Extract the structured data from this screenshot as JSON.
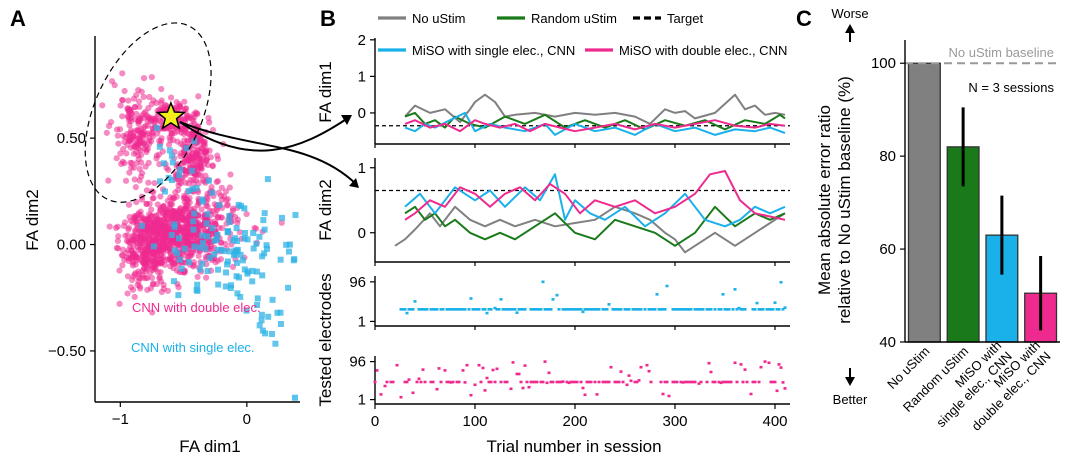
{
  "chart_data": [
    {
      "panel": "A",
      "type": "scatter",
      "xlabel": "FA dim1",
      "ylabel": "FA dim2",
      "xlim": [
        -1.2,
        0.42
      ],
      "ylim": [
        -0.74,
        0.98
      ],
      "xticks": [
        -1,
        0
      ],
      "xtick_labels": [
        "−1",
        "0"
      ],
      "yticks": [
        0.5,
        0.0,
        -0.5
      ],
      "ytick_labels": [
        "0.50",
        "0.00",
        "−0.50"
      ],
      "target": {
        "x": -0.6,
        "y": 0.6
      },
      "target_region": {
        "cx": -0.78,
        "cy": 0.62,
        "rx": 0.42,
        "ry": 0.45
      },
      "series": [
        {
          "name": "CNN with double elec.",
          "color": "#ee2a8f",
          "marker": "circle",
          "n": 1500,
          "clusters": [
            {
              "x": -0.6,
              "y": 0.58,
              "sx": 0.12,
              "sy": 0.05,
              "w": 0.12
            },
            {
              "x": -0.42,
              "y": 0.42,
              "sx": 0.08,
              "sy": 0.08,
              "w": 0.12
            },
            {
              "x": -0.4,
              "y": 0.08,
              "sx": 0.18,
              "sy": 0.1,
              "w": 0.28
            },
            {
              "x": -0.88,
              "y": 0.52,
              "sx": 0.09,
              "sy": 0.12,
              "w": 0.1
            },
            {
              "x": -0.8,
              "y": -0.02,
              "sx": 0.1,
              "sy": 0.1,
              "w": 0.18
            },
            {
              "x": -0.62,
              "y": 0.04,
              "sx": 0.12,
              "sy": 0.07,
              "w": 0.2
            }
          ]
        },
        {
          "name": "CNN with single elec.",
          "color": "#2db3e6",
          "marker": "square",
          "n": 140,
          "clusters": [
            {
              "x": -0.2,
              "y": 0.0,
              "sx": 0.24,
              "sy": 0.12,
              "w": 0.7
            },
            {
              "x": -0.55,
              "y": 0.4,
              "sx": 0.08,
              "sy": 0.08,
              "w": 0.15
            },
            {
              "x": 0.15,
              "y": -0.25,
              "sx": 0.1,
              "sy": 0.15,
              "w": 0.15
            }
          ],
          "outliers": [
            [
              0.38,
              -0.72
            ],
            [
              0.34,
              0.0
            ],
            [
              -0.02,
              0.17
            ],
            [
              -0.3,
              0.3
            ]
          ]
        }
      ],
      "annotations": [
        "CNN with double elec.",
        "CNN with single elec."
      ]
    },
    {
      "panel": "B",
      "type": "line",
      "xlabel": "Trial number in session",
      "xlim": [
        0,
        415
      ],
      "xticks": [
        0,
        100,
        200,
        300,
        400
      ],
      "legend": [
        {
          "name": "No uStim",
          "color": "#808080",
          "dash": false
        },
        {
          "name": "Random uStim",
          "color": "#1a7a1a",
          "dash": false
        },
        {
          "name": "Target",
          "color": "#000000",
          "dash": true
        },
        {
          "name": "MiSO with single elec., CNN",
          "color": "#1ab0ea",
          "dash": false
        },
        {
          "name": "MiSO with double elec., CNN",
          "color": "#ee2a8f",
          "dash": false
        }
      ],
      "subplots": [
        {
          "ylabel": "FA dim1",
          "ylim": [
            -0.85,
            2.05
          ],
          "yticks": [
            0,
            1,
            2
          ],
          "target": -0.35,
          "series": [
            {
              "name": "No uStim",
              "x": [
                30,
                40,
                55,
                70,
                85,
                95,
                100,
                110,
                120,
                130,
                140,
                160,
                180,
                200,
                220,
                240,
                260,
                275,
                290,
                300,
                310,
                320,
                340,
                360,
                370,
                380,
                390,
                400,
                410
              ],
              "y": [
                -0.1,
                0.2,
                0.0,
                0.1,
                -0.25,
                0.1,
                0.3,
                0.5,
                0.3,
                -0.1,
                -0.05,
                0.0,
                -0.1,
                0.0,
                -0.05,
                0.0,
                -0.1,
                -0.3,
                0.1,
                0.0,
                0.05,
                -0.15,
                0.0,
                0.5,
                0.1,
                0.2,
                -0.05,
                0.0,
                -0.05
              ]
            },
            {
              "name": "Random uStim",
              "x": [
                30,
                40,
                50,
                60,
                70,
                80,
                95,
                110,
                130,
                150,
                170,
                190,
                210,
                230,
                250,
                270,
                290,
                310,
                330,
                350,
                370,
                390,
                405,
                410
              ],
              "y": [
                -0.1,
                0.0,
                -0.3,
                -0.2,
                -0.4,
                -0.1,
                -0.3,
                -0.4,
                -0.1,
                -0.3,
                -0.05,
                -0.4,
                -0.2,
                -0.4,
                -0.2,
                -0.45,
                -0.2,
                -0.35,
                -0.2,
                -0.45,
                -0.2,
                -0.3,
                -0.05,
                -0.15
              ]
            },
            {
              "name": "MiSO with single elec., CNN",
              "x": [
                30,
                40,
                50,
                60,
                75,
                90,
                100,
                115,
                130,
                150,
                170,
                180,
                200,
                220,
                240,
                260,
                280,
                300,
                320,
                340,
                360,
                380,
                395,
                410
              ],
              "y": [
                -0.4,
                -0.5,
                -0.3,
                -0.4,
                -0.2,
                0.0,
                -0.5,
                -0.3,
                -0.4,
                -0.5,
                -0.3,
                -0.6,
                -0.3,
                -0.5,
                -0.4,
                -0.6,
                -0.3,
                -0.5,
                -0.4,
                -0.6,
                -0.45,
                -0.5,
                -0.4,
                -0.55
              ]
            },
            {
              "name": "MiSO with double elec., CNN",
              "x": [
                30,
                40,
                55,
                70,
                85,
                100,
                110,
                125,
                140,
                155,
                170,
                185,
                200,
                220,
                240,
                260,
                280,
                300,
                320,
                340,
                360,
                380,
                395,
                410
              ],
              "y": [
                -0.3,
                -0.2,
                -0.4,
                -0.3,
                -0.5,
                -0.2,
                -0.3,
                -0.4,
                -0.3,
                -0.5,
                -0.3,
                -0.4,
                -0.5,
                -0.4,
                -0.3,
                -0.45,
                -0.3,
                -0.4,
                -0.3,
                -0.2,
                -0.35,
                -0.4,
                -0.3,
                -0.35
              ]
            }
          ]
        },
        {
          "ylabel": "FA dim2",
          "ylim": [
            -0.45,
            1.15
          ],
          "yticks": [
            0,
            1
          ],
          "target": 0.65,
          "series": [
            {
              "name": "No uStim",
              "x": [
                20,
                30,
                40,
                55,
                65,
                80,
                95,
                110,
                125,
                140,
                160,
                180,
                200,
                220,
                240,
                260,
                275,
                290,
                300,
                310,
                320,
                340,
                360,
                380,
                400,
                410
              ],
              "y": [
                -0.2,
                -0.1,
                0.05,
                0.3,
                0.1,
                0.4,
                0.2,
                0.1,
                0.2,
                0.1,
                0.2,
                0.1,
                0.15,
                0.2,
                0.4,
                0.3,
                0.2,
                0.0,
                -0.1,
                -0.3,
                -0.2,
                0.0,
                -0.2,
                0.0,
                0.2,
                0.3
              ]
            },
            {
              "name": "Random uStim",
              "x": [
                30,
                40,
                50,
                60,
                70,
                80,
                95,
                110,
                125,
                140,
                160,
                180,
                200,
                220,
                240,
                260,
                280,
                300,
                320,
                340,
                360,
                380,
                395,
                410
              ],
              "y": [
                0.3,
                0.4,
                0.2,
                0.3,
                0.1,
                0.2,
                0.0,
                -0.1,
                0.0,
                -0.1,
                0.1,
                0.3,
                0.0,
                -0.1,
                0.2,
                0.1,
                0.0,
                -0.2,
                0.0,
                0.4,
                0.1,
                0.3,
                0.2,
                0.3
              ]
            },
            {
              "name": "MiSO with single elec., CNN",
              "x": [
                30,
                45,
                60,
                80,
                100,
                115,
                130,
                150,
                165,
                180,
                190,
                200,
                215,
                230,
                250,
                270,
                290,
                310,
                330,
                350,
                365,
                380,
                395,
                410
              ],
              "y": [
                0.4,
                0.6,
                0.3,
                0.7,
                0.5,
                0.65,
                0.4,
                0.7,
                0.5,
                0.9,
                0.2,
                0.5,
                0.3,
                0.2,
                0.4,
                0.1,
                0.3,
                0.6,
                0.2,
                0.1,
                0.2,
                0.4,
                0.3,
                0.4
              ]
            },
            {
              "name": "MiSO with double elec., CNN",
              "x": [
                30,
                40,
                55,
                70,
                85,
                100,
                115,
                130,
                145,
                160,
                175,
                190,
                205,
                220,
                240,
                260,
                280,
                300,
                320,
                335,
                350,
                365,
                380,
                395,
                410
              ],
              "y": [
                0.2,
                0.3,
                0.5,
                0.4,
                0.7,
                0.6,
                0.4,
                0.6,
                0.7,
                0.5,
                0.75,
                0.6,
                0.3,
                0.5,
                0.4,
                0.5,
                0.3,
                0.4,
                0.6,
                0.9,
                0.95,
                0.5,
                0.3,
                0.25,
                0.2
              ]
            }
          ]
        },
        {
          "ylabel": "",
          "ylim": [
            -10,
            110
          ],
          "yticks": [
            96,
            1
          ],
          "ytick_labels": [
            "96",
            "1"
          ],
          "series": [
            {
              "name": "MiSO with single elec., CNN",
              "x_start": 20,
              "x_end": 410,
              "modal_y": 30,
              "scatter_prob": 0.08
            }
          ]
        },
        {
          "ylabel": "",
          "ylim": [
            -10,
            110
          ],
          "yticks": [
            96,
            1
          ],
          "ytick_labels": [
            "96",
            "1"
          ],
          "series": [
            {
              "name": "MiSO with double elec., CNN",
              "x_start": 0,
              "x_end": 410,
              "modal_y": 45,
              "scatter_prob": 0.5
            }
          ]
        }
      ],
      "shared_ylabel": "Tested electrodes"
    },
    {
      "panel": "C",
      "type": "bar",
      "ylabel_lines": [
        "Mean absolute error ratio",
        "relative to No uStim baseline (%)"
      ],
      "ylim": [
        40,
        105
      ],
      "yticks": [
        40,
        60,
        80,
        100
      ],
      "baseline": 100,
      "baseline_label": "No uStim baseline",
      "annotation": "N = 3 sessions",
      "worse_label": "Worse",
      "better_label": "Better",
      "categories": [
        "No uStim",
        "Random uStim",
        "MiSO with\nsingle elec., CNN",
        "MiSO with\ndouble elec., CNN"
      ],
      "values": [
        100,
        82,
        63,
        50.5
      ],
      "errors": [
        0,
        8.5,
        8.5,
        8
      ],
      "colors": [
        "#808080",
        "#1a7a1a",
        "#1ab0ea",
        "#ee2a8f"
      ]
    }
  ],
  "panel_letters": [
    "A",
    "B",
    "C"
  ]
}
